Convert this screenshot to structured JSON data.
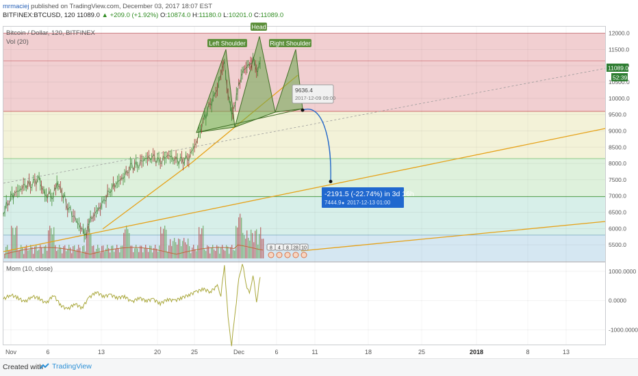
{
  "header": {
    "author": "mrmaciej",
    "published_text": "published on TradingView.com, December 03, 2017 18:07 EST",
    "symbol": "BITFINEX:BTCUSD, 120",
    "last": "11089.0",
    "arrow": "▲",
    "change": "+209.0 (+1.92%)",
    "o_label": "O:",
    "o": "10874.0",
    "h_label": "H:",
    "h": "11180.0",
    "l_label": "L:",
    "l": "10201.0",
    "c_label": "C:",
    "c": "11089.0"
  },
  "legend": {
    "main": "Bitcoin / Dollar, 120, BITFINEX",
    "vol": "Vol (20)",
    "mom": "Mom (10, close)"
  },
  "price_labels": {
    "current": "11089.0",
    "second": "52:39"
  },
  "annotations": {
    "head": "Head",
    "left_shoulder": "Left Shoulder",
    "right_shoulder": "Right Shoulder",
    "start_price": "9636.4",
    "start_time": "2017-12-09 09:00",
    "change": "-2191.5 (-22.74%) in 3d 16h",
    "target_price": "7444.9",
    "target_time": "2017-12-13  01:00",
    "event_flags": [
      "8",
      "4",
      "8",
      "28",
      "10"
    ]
  },
  "colors": {
    "zone_red": "#f1cfd1",
    "zone_yellow": "#f3f2d8",
    "zone_green": "#def1dc",
    "zone_teal": "#d7efe9",
    "zone_blue": "#d5e7f2",
    "pattern": "#6aa84f",
    "trend": "#e6a117",
    "momentum": "#a9a73a",
    "projection": "#2468c9"
  },
  "chart_data": {
    "type": "line",
    "title": "Bitcoin / Dollar, 120, BITFINEX",
    "price_axis": {
      "ylim": [
        5000,
        12200
      ],
      "ticks": [
        "12000.0",
        "11500.0",
        "11000.0",
        "10500.0",
        "10000.0",
        "9500.0",
        "9000.0",
        "8500.0",
        "8000.0",
        "7500.0",
        "7000.0",
        "6500.0",
        "6000.0",
        "5500.0"
      ]
    },
    "momentum_axis": {
      "ylim": [
        -1500,
        1300
      ],
      "ticks": [
        "1000.0000",
        "0.0000",
        "-1000.0000"
      ]
    },
    "x_ticks": [
      "Nov",
      "6",
      "13",
      "20",
      "25",
      "Dec",
      "6",
      "11",
      "18",
      "25",
      "2018",
      "8",
      "13"
    ],
    "zones": [
      {
        "from": 9600,
        "to": 12000,
        "color": "red"
      },
      {
        "from": 8150,
        "to": 9600,
        "color": "yellow"
      },
      {
        "from": 6980,
        "to": 8150,
        "color": "green"
      },
      {
        "from": 5800,
        "to": 6980,
        "color": "teal"
      },
      {
        "from": 5000,
        "to": 5800,
        "color": "blue"
      }
    ],
    "price_series": [
      [
        0,
        6500
      ],
      [
        1,
        6950
      ],
      [
        2,
        7150
      ],
      [
        3,
        7300
      ],
      [
        4,
        7400
      ],
      [
        5,
        7500
      ],
      [
        5.5,
        7200
      ],
      [
        6,
        7050
      ],
      [
        7,
        7000
      ],
      [
        7.5,
        7400
      ],
      [
        8,
        7200
      ],
      [
        9,
        6700
      ],
      [
        10,
        6300
      ],
      [
        11,
        6000
      ],
      [
        11.5,
        5800
      ],
      [
        12,
        6200
      ],
      [
        13,
        6500
      ],
      [
        14,
        6800
      ],
      [
        15,
        7200
      ],
      [
        16,
        7400
      ],
      [
        17,
        7650
      ],
      [
        18,
        7900
      ],
      [
        19,
        8000
      ],
      [
        20,
        8150
      ],
      [
        21,
        8200
      ],
      [
        22,
        8050
      ],
      [
        23,
        8250
      ],
      [
        24,
        8150
      ],
      [
        25,
        8050
      ],
      [
        26,
        8200
      ],
      [
        27,
        8600
      ],
      [
        28,
        9300
      ],
      [
        29,
        9800
      ],
      [
        30,
        10300
      ],
      [
        30.5,
        10800
      ],
      [
        31,
        11000
      ],
      [
        31.5,
        10200
      ],
      [
        32,
        9500
      ],
      [
        32.5,
        9800
      ],
      [
        33,
        10400
      ],
      [
        33.5,
        10800
      ],
      [
        34,
        11000
      ],
      [
        34.5,
        10900
      ],
      [
        35,
        11300
      ],
      [
        35.5,
        10800
      ],
      [
        36,
        11089
      ]
    ],
    "momentum_series": [
      [
        0,
        50
      ],
      [
        1,
        200
      ],
      [
        2,
        100
      ],
      [
        3,
        -50
      ],
      [
        4,
        150
      ],
      [
        5,
        80
      ],
      [
        6,
        -100
      ],
      [
        7,
        200
      ],
      [
        8,
        -150
      ],
      [
        9,
        -300
      ],
      [
        10,
        -100
      ],
      [
        11,
        -250
      ],
      [
        12,
        100
      ],
      [
        13,
        300
      ],
      [
        14,
        150
      ],
      [
        15,
        200
      ],
      [
        16,
        100
      ],
      [
        17,
        150
      ],
      [
        18,
        -50
      ],
      [
        19,
        100
      ],
      [
        20,
        0
      ],
      [
        21,
        50
      ],
      [
        22,
        -100
      ],
      [
        23,
        50
      ],
      [
        24,
        0
      ],
      [
        25,
        100
      ],
      [
        26,
        200
      ],
      [
        27,
        300
      ],
      [
        28,
        400
      ],
      [
        29,
        300
      ],
      [
        30,
        500
      ],
      [
        30.5,
        200
      ],
      [
        31,
        1200
      ],
      [
        31.5,
        -600
      ],
      [
        32,
        -1500
      ],
      [
        32.5,
        -400
      ],
      [
        33,
        700
      ],
      [
        33.5,
        1300
      ],
      [
        34,
        600
      ],
      [
        34.5,
        200
      ],
      [
        35,
        900
      ],
      [
        35.5,
        -50
      ],
      [
        36,
        800
      ]
    ],
    "pattern_points": {
      "left_shoulder": {
        "t": 30.9,
        "p": 11500
      },
      "head": {
        "t": 35.8,
        "p": 11900
      },
      "right_shoulder": {
        "t": 40.3,
        "p": 11500
      },
      "neckline_start": {
        "t": 26.9,
        "p": 8950
      },
      "neckline_end": {
        "t": 41.8,
        "p": 9680
      }
    },
    "projection": {
      "from": {
        "t": 41.8,
        "p": 9636.4
      },
      "to": {
        "t": 45.5,
        "p": 7444.9
      }
    }
  }
}
